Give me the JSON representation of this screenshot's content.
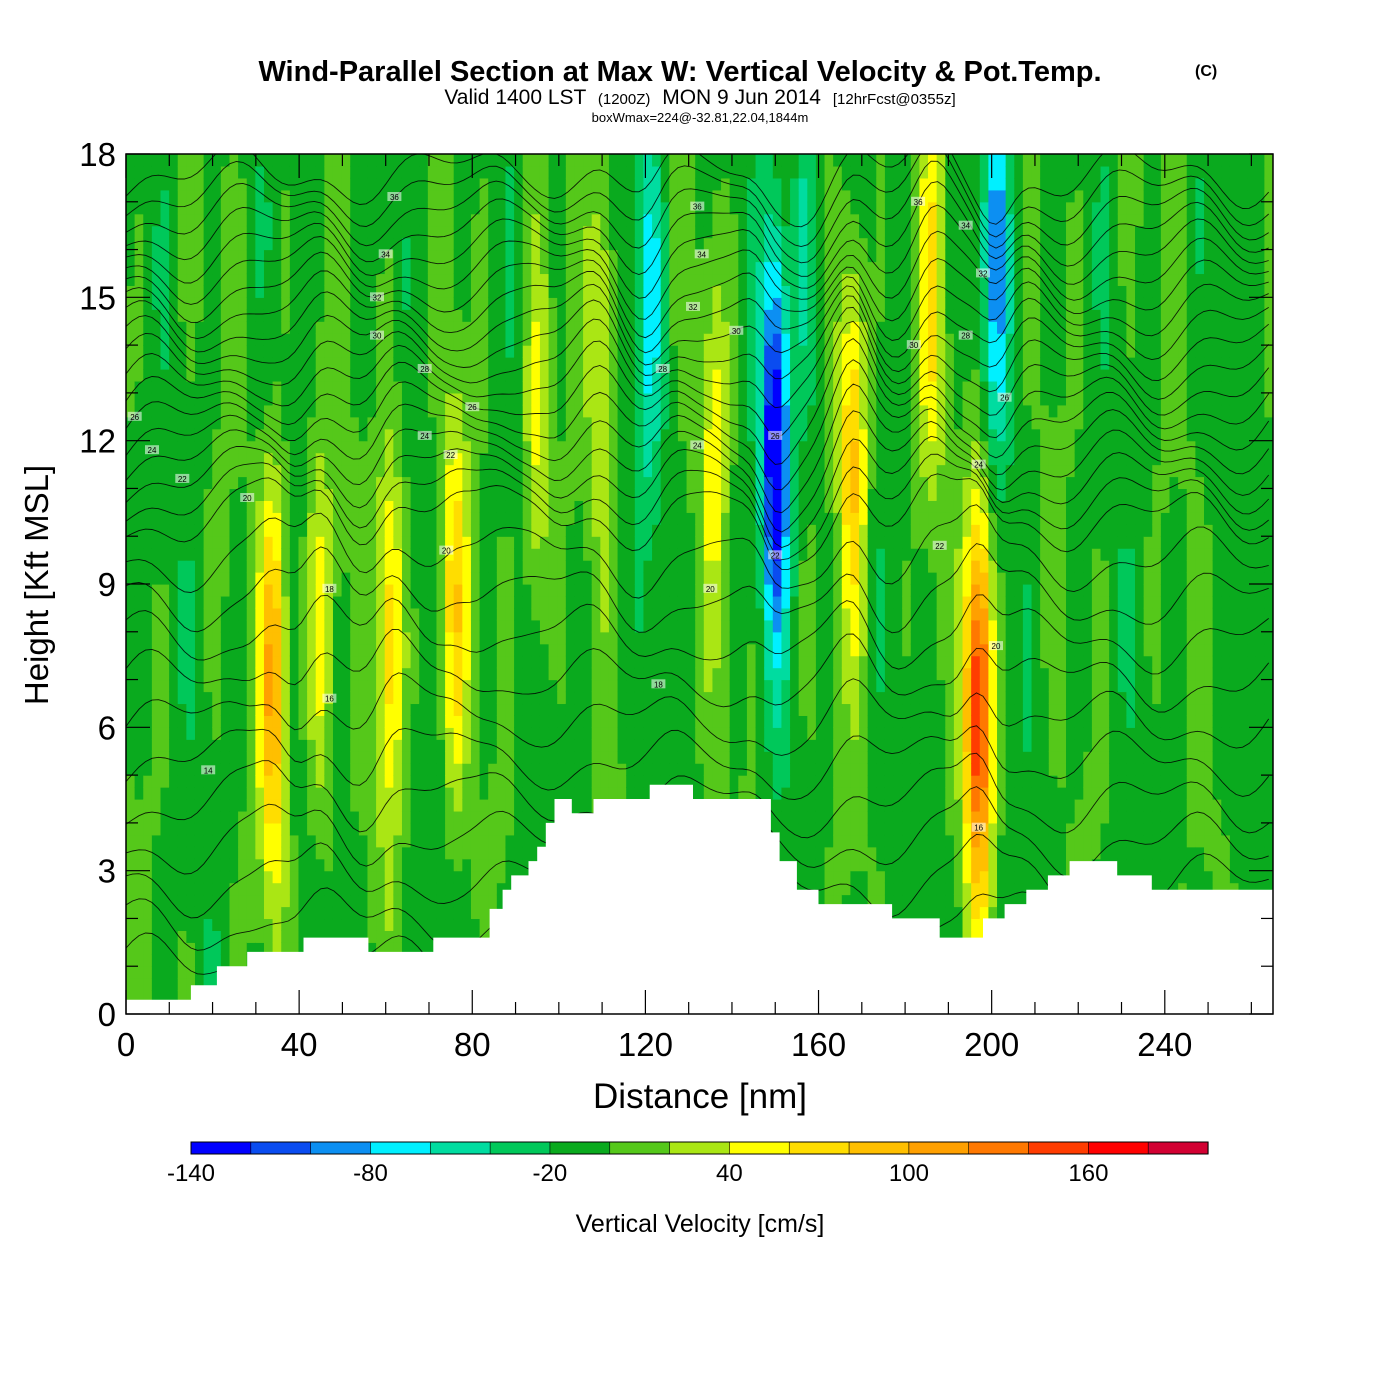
{
  "header": {
    "title": "Wind-Parallel Section at Max W: Vertical Velocity & Pot.Temp.",
    "copyright": "(C)",
    "valid_prefix": "Valid 1400 LST",
    "valid_utc": "(1200Z)",
    "valid_date": "MON 9 Jun 2014",
    "forecast": "[12hrFcst@0355z]",
    "box_wmax": "boxWmax=224@-32.81,22.04,1844m"
  },
  "chart_data": {
    "type": "heatmap",
    "xlabel": "Distance [nm]",
    "ylabel": "Height [Kft MSL]",
    "xlim": [
      0,
      265
    ],
    "ylim": [
      0,
      18
    ],
    "x_ticks": [
      0,
      40,
      80,
      120,
      160,
      200,
      240
    ],
    "y_ticks": [
      0,
      3,
      6,
      9,
      12,
      15,
      18
    ],
    "colorbar": {
      "label": "Vertical Velocity [cm/s]",
      "bounds": [
        -140,
        -120,
        -100,
        -80,
        -60,
        -40,
        -20,
        0,
        20,
        40,
        60,
        80,
        100,
        120,
        140,
        160,
        180
      ],
      "tick_labels": [
        -140,
        -80,
        -20,
        40,
        100,
        160
      ],
      "colors": [
        "#0000ff",
        "#0a4cf0",
        "#0c8ff2",
        "#00f0ff",
        "#00dca0",
        "#00c85a",
        "#0aaa1e",
        "#55c81a",
        "#aae614",
        "#ffff00",
        "#ffdd00",
        "#ffbf00",
        "#ffa000",
        "#ff7800",
        "#ff3c00",
        "#ff0000",
        "#d20032"
      ]
    },
    "terrain": [
      [
        0,
        0.3
      ],
      [
        15,
        0.3
      ],
      [
        15,
        0.6
      ],
      [
        21,
        0.6
      ],
      [
        21,
        1.0
      ],
      [
        28,
        1.0
      ],
      [
        28,
        1.3
      ],
      [
        41,
        1.3
      ],
      [
        41,
        1.6
      ],
      [
        56,
        1.6
      ],
      [
        56,
        1.3
      ],
      [
        71,
        1.3
      ],
      [
        71,
        1.6
      ],
      [
        84,
        1.6
      ],
      [
        84,
        2.2
      ],
      [
        87,
        2.2
      ],
      [
        87,
        2.6
      ],
      [
        89,
        2.6
      ],
      [
        89,
        2.9
      ],
      [
        93,
        2.9
      ],
      [
        93,
        3.2
      ],
      [
        95,
        3.2
      ],
      [
        95,
        3.5
      ],
      [
        97,
        3.5
      ],
      [
        97,
        4.0
      ],
      [
        99,
        4.0
      ],
      [
        99,
        4.5
      ],
      [
        103,
        4.5
      ],
      [
        103,
        4.2
      ],
      [
        108,
        4.2
      ],
      [
        108,
        4.5
      ],
      [
        121,
        4.5
      ],
      [
        121,
        4.8
      ],
      [
        131,
        4.8
      ],
      [
        131,
        4.5
      ],
      [
        149,
        4.5
      ],
      [
        149,
        3.8
      ],
      [
        151,
        3.8
      ],
      [
        151,
        3.2
      ],
      [
        155,
        3.2
      ],
      [
        155,
        2.6
      ],
      [
        160,
        2.6
      ],
      [
        160,
        2.3
      ],
      [
        177,
        2.3
      ],
      [
        177,
        2.0
      ],
      [
        188,
        2.0
      ],
      [
        188,
        1.6
      ],
      [
        198,
        1.6
      ],
      [
        198,
        2.0
      ],
      [
        203,
        2.0
      ],
      [
        203,
        2.3
      ],
      [
        208,
        2.3
      ],
      [
        208,
        2.6
      ],
      [
        213,
        2.6
      ],
      [
        213,
        2.9
      ],
      [
        218,
        2.9
      ],
      [
        218,
        3.2
      ],
      [
        229,
        3.2
      ],
      [
        229,
        2.9
      ],
      [
        237,
        2.9
      ],
      [
        237,
        2.6
      ],
      [
        265,
        2.6
      ]
    ],
    "updrafts": [
      {
        "x": 34,
        "z": 7.0,
        "peak": 110
      },
      {
        "x": 45,
        "z": 8.0,
        "peak": 55
      },
      {
        "x": 61,
        "z": 8.0,
        "peak": 80
      },
      {
        "x": 76,
        "z": 8.5,
        "peak": 75
      },
      {
        "x": 95,
        "z": 12.0,
        "peak": 55
      },
      {
        "x": 110,
        "z": 14.0,
        "peak": 50
      },
      {
        "x": 136,
        "z": 12.0,
        "peak": 50
      },
      {
        "x": 168,
        "z": 12.0,
        "peak": 90
      },
      {
        "x": 186,
        "z": 15.0,
        "peak": 60
      },
      {
        "x": 197,
        "z": 6.5,
        "peak": 170
      }
    ],
    "downdrafts": [
      {
        "x": 150,
        "z": 12.0,
        "peak": -140
      },
      {
        "x": 157,
        "z": 16.0,
        "peak": -40
      },
      {
        "x": 201,
        "z": 16.0,
        "peak": -80
      },
      {
        "x": 121,
        "z": 15.0,
        "peak": -60
      }
    ],
    "isentrope_labels": [
      {
        "x": 2,
        "z": 12.5,
        "text": "26"
      },
      {
        "x": 6,
        "z": 11.8,
        "text": "24"
      },
      {
        "x": 13,
        "z": 11.2,
        "text": "22"
      },
      {
        "x": 28,
        "z": 10.8,
        "text": "20"
      },
      {
        "x": 19,
        "z": 5.1,
        "text": "14"
      },
      {
        "x": 47,
        "z": 8.9,
        "text": "18"
      },
      {
        "x": 47,
        "z": 6.6,
        "text": "16"
      },
      {
        "x": 62,
        "z": 17.1,
        "text": "36"
      },
      {
        "x": 60,
        "z": 15.9,
        "text": "34"
      },
      {
        "x": 58,
        "z": 15.0,
        "text": "32"
      },
      {
        "x": 58,
        "z": 14.2,
        "text": "30"
      },
      {
        "x": 69,
        "z": 13.5,
        "text": "28"
      },
      {
        "x": 69,
        "z": 12.1,
        "text": "24"
      },
      {
        "x": 75,
        "z": 11.7,
        "text": "22"
      },
      {
        "x": 80,
        "z": 12.7,
        "text": "26"
      },
      {
        "x": 74,
        "z": 9.7,
        "text": "20"
      },
      {
        "x": 124,
        "z": 13.5,
        "text": "28"
      },
      {
        "x": 123,
        "z": 6.9,
        "text": "18"
      },
      {
        "x": 132,
        "z": 16.9,
        "text": "36"
      },
      {
        "x": 133,
        "z": 15.9,
        "text": "34"
      },
      {
        "x": 131,
        "z": 14.8,
        "text": "32"
      },
      {
        "x": 141,
        "z": 14.3,
        "text": "30"
      },
      {
        "x": 132,
        "z": 11.9,
        "text": "24"
      },
      {
        "x": 135,
        "z": 8.9,
        "text": "20"
      },
      {
        "x": 150,
        "z": 12.1,
        "text": "26"
      },
      {
        "x": 150,
        "z": 9.6,
        "text": "22"
      },
      {
        "x": 183,
        "z": 17.0,
        "text": "36"
      },
      {
        "x": 194,
        "z": 16.5,
        "text": "34"
      },
      {
        "x": 198,
        "z": 15.5,
        "text": "32"
      },
      {
        "x": 182,
        "z": 14.0,
        "text": "30"
      },
      {
        "x": 194,
        "z": 14.2,
        "text": "28"
      },
      {
        "x": 203,
        "z": 12.9,
        "text": "26"
      },
      {
        "x": 197,
        "z": 11.5,
        "text": "24"
      },
      {
        "x": 188,
        "z": 9.8,
        "text": "22"
      },
      {
        "x": 201,
        "z": 7.7,
        "text": "20"
      },
      {
        "x": 197,
        "z": 3.9,
        "text": "16"
      }
    ]
  }
}
